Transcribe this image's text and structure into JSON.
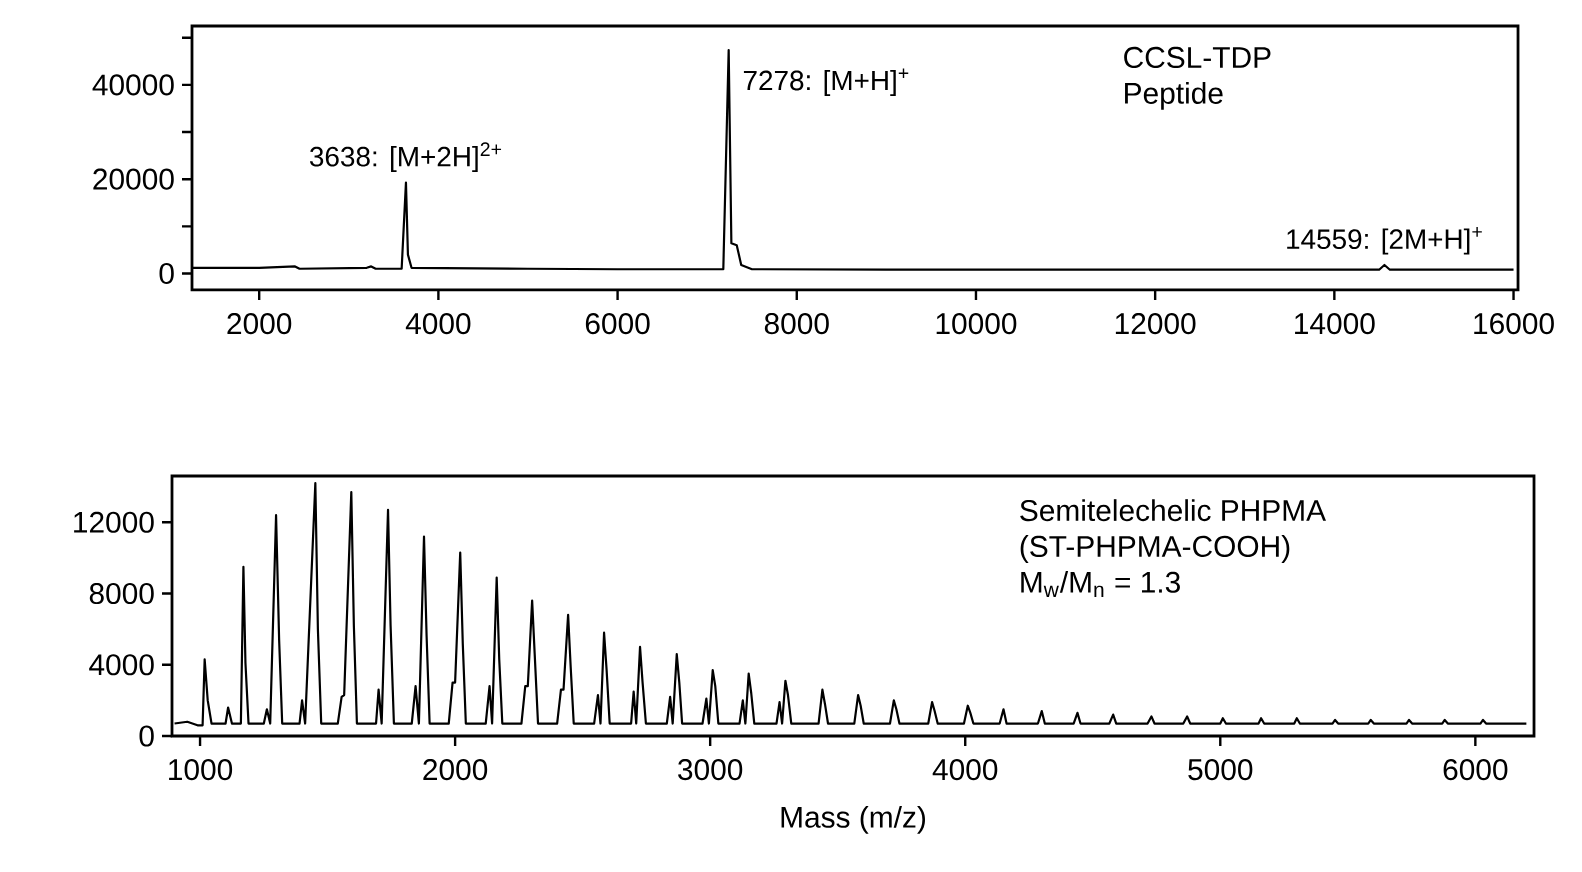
{
  "chart_data": [
    {
      "type": "line",
      "xlim": [
        1250,
        16050
      ],
      "ylim": [
        -3500,
        52500
      ],
      "xticks": [
        2000,
        4000,
        6000,
        8000,
        10000,
        12000,
        14000,
        16000
      ],
      "yticks": [
        0,
        {
          "value": 10000,
          "label": null
        },
        20000,
        {
          "value": 30000,
          "label": null
        },
        40000,
        {
          "value": 50000,
          "label": null
        }
      ],
      "series": [
        {
          "color": "#000000",
          "x": [
            1250,
            2000,
            2400,
            2450,
            3200,
            3250,
            3300,
            3590,
            3638,
            3660,
            3700,
            5000,
            6000,
            7180,
            7240,
            7270,
            7330,
            7380,
            7500,
            9000,
            12000,
            14500,
            14559,
            14620,
            16000
          ],
          "values": [
            1200,
            1200,
            1500,
            1000,
            1200,
            1500,
            1000,
            1000,
            19300,
            4000,
            1200,
            1000,
            900,
            900,
            47400,
            6400,
            6000,
            1800,
            900,
            800,
            800,
            800,
            1800,
            800,
            800
          ]
        }
      ],
      "annotations": [
        {
          "text": "3638: [M+2H]$^{2+}$",
          "x": 3638,
          "y": 19300
        },
        {
          "text": "7278: [M+H]$^{+}$",
          "x": 7278,
          "y": 47400
        },
        {
          "text": "14559: [2M+H]$^{+}$",
          "x": 14559,
          "y": 1800
        },
        "CCSL-TDP",
        "Peptide"
      ]
    },
    {
      "type": "line",
      "xlim": [
        890,
        6230
      ],
      "ylim": [
        0,
        14600
      ],
      "xticks": [
        1000,
        2000,
        3000,
        4000,
        5000,
        6000
      ],
      "yticks": [
        0,
        4000,
        8000,
        12000
      ],
      "xlabel": "Mass (m/z)",
      "series": [
        {
          "color": "#000000",
          "x": [
            900,
            950,
            990,
            1010,
            1018,
            1030,
            1045,
            1100,
            1110,
            1125,
            1160,
            1170,
            1178,
            1190,
            1250,
            1262,
            1275,
            1298,
            1310,
            1322,
            1390,
            1400,
            1412,
            1452,
            1462,
            1475,
            1540,
            1555,
            1565,
            1593,
            1603,
            1615,
            1690,
            1700,
            1712,
            1737,
            1747,
            1760,
            1830,
            1845,
            1858,
            1878,
            1888,
            1900,
            1975,
            1990,
            2000,
            2020,
            2030,
            2042,
            2120,
            2135,
            2145,
            2163,
            2173,
            2185,
            2260,
            2275,
            2285,
            2302,
            2312,
            2325,
            2400,
            2415,
            2425,
            2443,
            2453,
            2465,
            2545,
            2560,
            2570,
            2584,
            2594,
            2606,
            2690,
            2700,
            2710,
            2725,
            2735,
            2748,
            2830,
            2843,
            2853,
            2869,
            2879,
            2890,
            2970,
            2985,
            2995,
            3010,
            3020,
            3032,
            3115,
            3128,
            3138,
            3151,
            3161,
            3173,
            3260,
            3272,
            3282,
            3295,
            3305,
            3318,
            3425,
            3440,
            3450,
            3462,
            3565,
            3580,
            3590,
            3602,
            3705,
            3720,
            3730,
            3742,
            3855,
            3870,
            3880,
            3892,
            3995,
            4010,
            4020,
            4032,
            4135,
            4150,
            4162,
            4285,
            4300,
            4312,
            4425,
            4440,
            4452,
            4565,
            4580,
            4592,
            4715,
            4730,
            4742,
            4855,
            4870,
            4882,
            5000,
            5010,
            5022,
            5150,
            5160,
            5172,
            5290,
            5300,
            5312,
            5440,
            5450,
            5462,
            5580,
            5590,
            5602,
            5730,
            5740,
            5752,
            5870,
            5880,
            5892,
            6020,
            6030,
            6042,
            6200
          ],
          "values": [
            700,
            800,
            600,
            600,
            4300,
            2000,
            700,
            700,
            1600,
            700,
            700,
            9500,
            4100,
            700,
            700,
            1500,
            700,
            12400,
            5400,
            700,
            700,
            2000,
            700,
            14200,
            6000,
            700,
            700,
            2200,
            2300,
            13700,
            6200,
            700,
            700,
            2600,
            700,
            12700,
            6200,
            700,
            700,
            2800,
            700,
            11200,
            5700,
            700,
            700,
            3000,
            3000,
            10300,
            5200,
            700,
            700,
            2800,
            700,
            8900,
            4300,
            700,
            700,
            2800,
            2800,
            7600,
            4600,
            700,
            700,
            2600,
            2600,
            6800,
            3900,
            700,
            700,
            2300,
            700,
            5800,
            3700,
            700,
            700,
            2500,
            700,
            5000,
            3000,
            700,
            700,
            2200,
            700,
            4600,
            3000,
            700,
            700,
            2100,
            700,
            3700,
            2800,
            700,
            700,
            2000,
            700,
            3500,
            2400,
            700,
            700,
            1900,
            700,
            3100,
            2300,
            700,
            700,
            2600,
            1800,
            700,
            700,
            2300,
            1700,
            700,
            700,
            2000,
            1500,
            700,
            700,
            1900,
            1400,
            700,
            700,
            1700,
            1300,
            700,
            700,
            1500,
            700,
            700,
            1400,
            700,
            700,
            1300,
            700,
            700,
            1200,
            700,
            700,
            1100,
            700,
            700,
            1100,
            700,
            700,
            1000,
            700,
            700,
            1000,
            700,
            700,
            1000,
            700,
            700,
            900,
            700,
            700,
            900,
            700,
            700,
            900,
            700,
            700,
            900,
            700,
            700,
            900,
            700,
            700
          ]
        }
      ],
      "annotations": [
        "Semitelechelic PHPMA",
        "(ST-PHPMA-COOH)",
        "M$_{w}$/M$_{n}$ = 1.3"
      ]
    }
  ]
}
